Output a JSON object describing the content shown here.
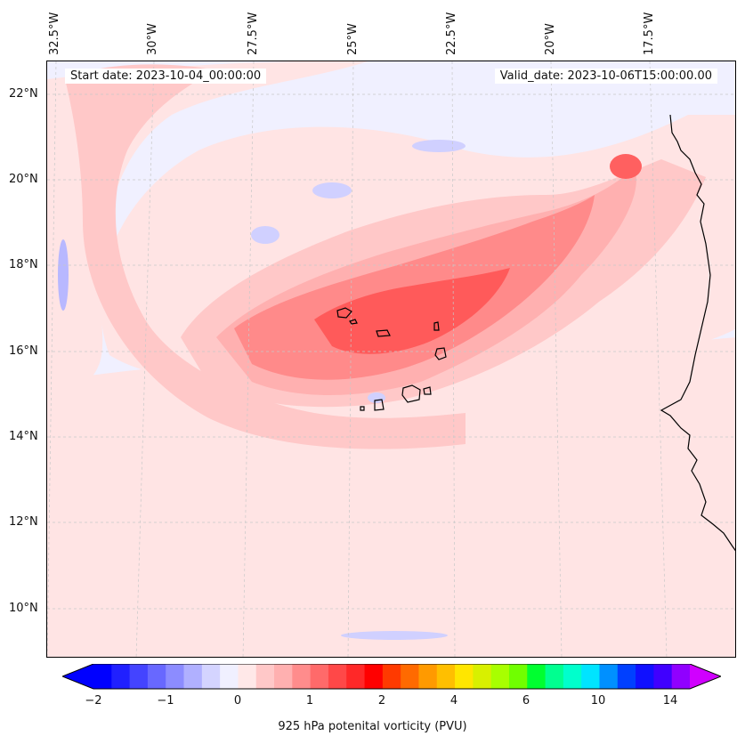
{
  "map": {
    "start_date": "Start date: 2023-10-04_00:00:00",
    "valid_date": "Valid_date: 2023-10-06T15:00:00.00",
    "longitude_labels": [
      "32.5°W",
      "30°W",
      "27.5°W",
      "25°W",
      "22.5°W",
      "20°W",
      "17.5°W"
    ],
    "latitude_labels": [
      "22°N",
      "20°N",
      "18°N",
      "16°N",
      "14°N",
      "12°N",
      "10°N"
    ],
    "colors": {
      "background": "#f0f0ff",
      "light_pink": "#ffe4e4",
      "pink": "#ffc8c8",
      "medium_pink": "#ffb0b0",
      "salmon": "#ff8a8a",
      "red": "#ff5a5a",
      "light_blue": "#d0d0ff",
      "coast": "#000000"
    }
  },
  "colorbar": {
    "tick_labels": [
      "−2",
      "−1",
      "0",
      "1",
      "2",
      "4",
      "6",
      "10",
      "14"
    ],
    "label": "925 hPa potenital vorticity (PVU)",
    "colors": [
      "#0000ff",
      "#2020ff",
      "#4444ff",
      "#6868ff",
      "#8c8cff",
      "#b0b0ff",
      "#d4d4ff",
      "#f0f0ff",
      "#ffe8e8",
      "#ffc8c8",
      "#ffb0b0",
      "#ff8c8c",
      "#ff6a6a",
      "#ff4848",
      "#ff2828",
      "#ff0000",
      "#ff3a00",
      "#ff6a00",
      "#ff9a00",
      "#ffbf00",
      "#ffe600",
      "#d8f000",
      "#a8ff00",
      "#70ff00",
      "#00ff30",
      "#00ff90",
      "#00ffcc",
      "#00e4ff",
      "#0090ff",
      "#0040ff",
      "#1010ff",
      "#4000ff",
      "#9000ff"
    ],
    "extend_low": "#0000ff",
    "extend_high": "#d000ff"
  }
}
